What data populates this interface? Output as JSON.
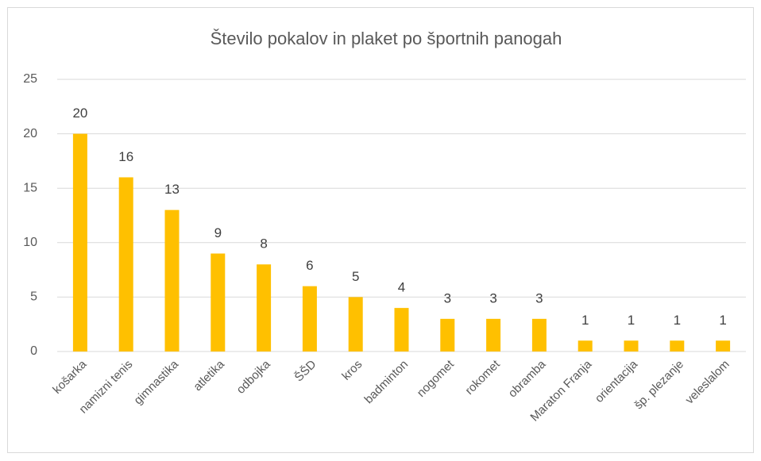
{
  "chart_data": {
    "type": "bar",
    "title": "Število pokalov in plaket po športnih panogah",
    "categories": [
      "košarka",
      "namizni tenis",
      "gimnastika",
      "atletika",
      "odbojka",
      "ŠŠD",
      "kros",
      "badminton",
      "nogomet",
      "rokomet",
      "obramba",
      "Maraton Franja",
      "orientacija",
      "šp. plezanje",
      "veleslalom"
    ],
    "values": [
      20,
      16,
      13,
      9,
      8,
      6,
      5,
      4,
      3,
      3,
      3,
      1,
      1,
      1,
      1
    ],
    "color": "#ffc000",
    "ylim": [
      0,
      25
    ],
    "yticks": [
      0,
      5,
      10,
      15,
      20,
      25
    ],
    "grid": true
  }
}
